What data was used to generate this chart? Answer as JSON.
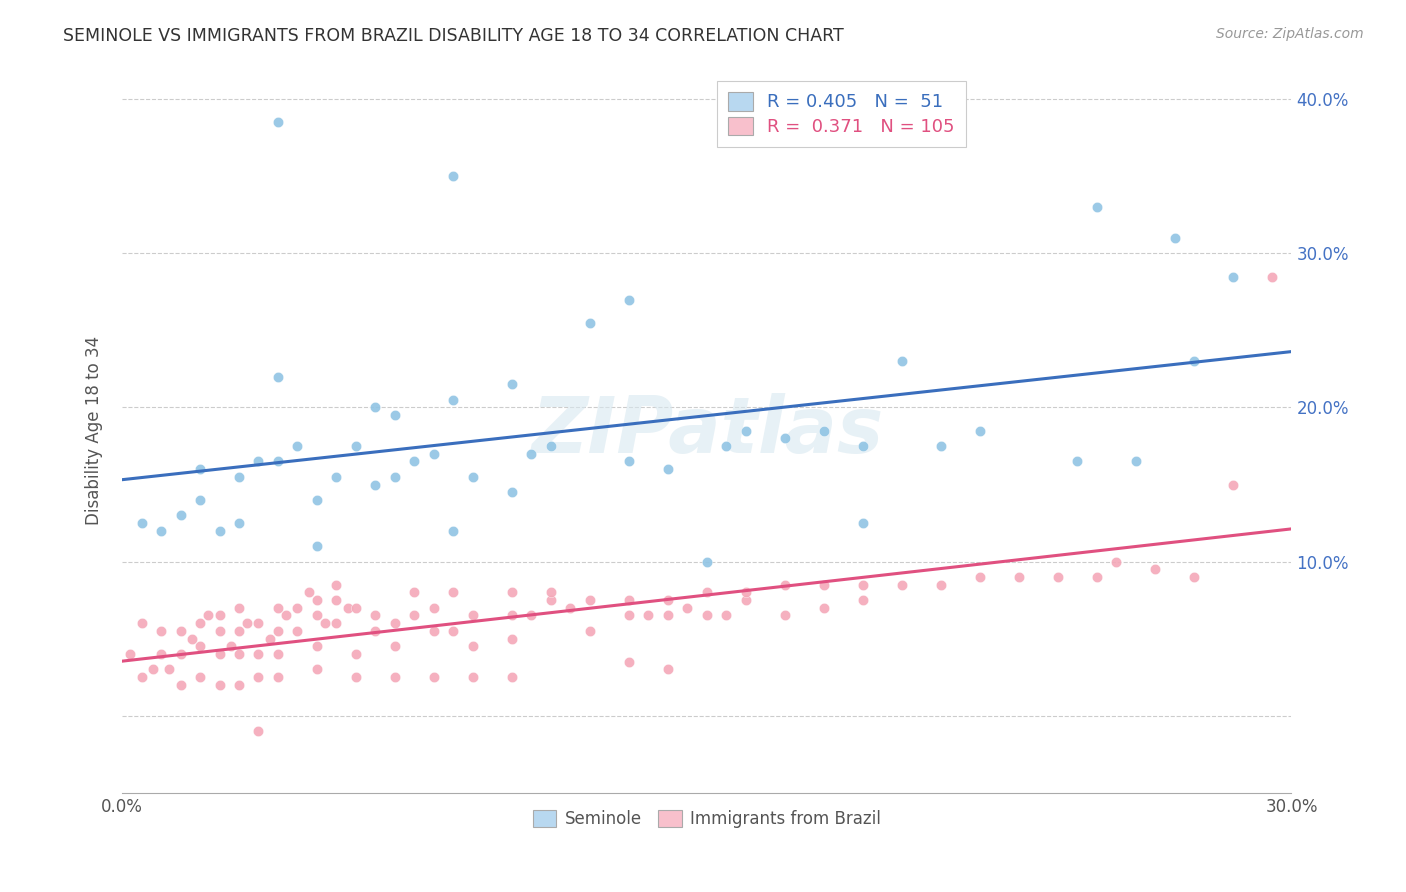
{
  "title": "SEMINOLE VS IMMIGRANTS FROM BRAZIL DISABILITY AGE 18 TO 34 CORRELATION CHART",
  "source": "Source: ZipAtlas.com",
  "ylabel": "Disability Age 18 to 34",
  "xlim": [
    0.0,
    0.3
  ],
  "ylim": [
    -0.05,
    0.42
  ],
  "x_tick_positions": [
    0.0,
    0.05,
    0.1,
    0.15,
    0.2,
    0.25,
    0.3
  ],
  "x_tick_labels": [
    "0.0%",
    "",
    "",
    "",
    "",
    "",
    "30.0%"
  ],
  "y_tick_positions": [
    0.0,
    0.1,
    0.2,
    0.3,
    0.4
  ],
  "y_tick_labels_right": [
    "",
    "10.0%",
    "20.0%",
    "30.0%",
    "40.0%"
  ],
  "blue_scatter_color": "#90c4e4",
  "pink_scatter_color": "#f4a8b8",
  "blue_line_color": "#3a6ebd",
  "pink_line_color": "#e05080",
  "legend_blue_fill": "#b8d8f0",
  "legend_pink_fill": "#f8c0cc",
  "R_blue": 0.405,
  "N_blue": 51,
  "R_pink": 0.371,
  "N_pink": 105,
  "watermark": "ZIPatlas",
  "grid_color": "#cccccc",
  "blue_scatter_x": [
    0.005,
    0.01,
    0.015,
    0.02,
    0.02,
    0.025,
    0.03,
    0.03,
    0.035,
    0.04,
    0.04,
    0.045,
    0.05,
    0.05,
    0.055,
    0.06,
    0.065,
    0.065,
    0.07,
    0.07,
    0.075,
    0.08,
    0.085,
    0.09,
    0.1,
    0.1,
    0.105,
    0.11,
    0.12,
    0.13,
    0.14,
    0.15,
    0.155,
    0.16,
    0.17,
    0.18,
    0.19,
    0.19,
    0.2,
    0.21,
    0.22,
    0.245,
    0.25,
    0.26,
    0.27,
    0.275,
    0.285,
    0.13,
    0.085,
    0.085,
    0.04
  ],
  "blue_scatter_y": [
    0.125,
    0.12,
    0.13,
    0.14,
    0.16,
    0.12,
    0.155,
    0.125,
    0.165,
    0.165,
    0.22,
    0.175,
    0.14,
    0.11,
    0.155,
    0.175,
    0.15,
    0.2,
    0.155,
    0.195,
    0.165,
    0.17,
    0.205,
    0.155,
    0.145,
    0.215,
    0.17,
    0.175,
    0.255,
    0.165,
    0.16,
    0.1,
    0.175,
    0.185,
    0.18,
    0.185,
    0.125,
    0.175,
    0.23,
    0.175,
    0.185,
    0.165,
    0.33,
    0.165,
    0.31,
    0.23,
    0.285,
    0.27,
    0.35,
    0.12,
    0.385
  ],
  "pink_scatter_x": [
    0.002,
    0.005,
    0.005,
    0.008,
    0.01,
    0.01,
    0.012,
    0.015,
    0.015,
    0.015,
    0.018,
    0.02,
    0.02,
    0.02,
    0.022,
    0.025,
    0.025,
    0.025,
    0.025,
    0.028,
    0.03,
    0.03,
    0.03,
    0.03,
    0.032,
    0.035,
    0.035,
    0.035,
    0.035,
    0.038,
    0.04,
    0.04,
    0.04,
    0.04,
    0.042,
    0.045,
    0.045,
    0.048,
    0.05,
    0.05,
    0.05,
    0.05,
    0.052,
    0.055,
    0.055,
    0.055,
    0.058,
    0.06,
    0.06,
    0.06,
    0.065,
    0.065,
    0.07,
    0.07,
    0.07,
    0.075,
    0.075,
    0.08,
    0.08,
    0.08,
    0.085,
    0.085,
    0.09,
    0.09,
    0.09,
    0.1,
    0.1,
    0.1,
    0.1,
    0.105,
    0.11,
    0.11,
    0.115,
    0.12,
    0.12,
    0.13,
    0.13,
    0.13,
    0.135,
    0.14,
    0.14,
    0.14,
    0.145,
    0.15,
    0.15,
    0.155,
    0.16,
    0.16,
    0.17,
    0.17,
    0.18,
    0.18,
    0.19,
    0.19,
    0.2,
    0.21,
    0.22,
    0.23,
    0.24,
    0.25,
    0.255,
    0.265,
    0.275,
    0.285,
    0.295
  ],
  "pink_scatter_y": [
    0.04,
    0.025,
    0.06,
    0.03,
    0.04,
    0.055,
    0.03,
    0.04,
    0.055,
    0.02,
    0.05,
    0.045,
    0.06,
    0.025,
    0.065,
    0.04,
    0.055,
    0.065,
    0.02,
    0.045,
    0.055,
    0.04,
    0.07,
    0.02,
    0.06,
    0.04,
    0.06,
    0.025,
    -0.01,
    0.05,
    0.055,
    0.07,
    0.04,
    0.025,
    0.065,
    0.055,
    0.07,
    0.08,
    0.045,
    0.065,
    0.03,
    0.075,
    0.06,
    0.075,
    0.06,
    0.085,
    0.07,
    0.04,
    0.07,
    0.025,
    0.065,
    0.055,
    0.06,
    0.045,
    0.025,
    0.065,
    0.08,
    0.055,
    0.07,
    0.025,
    0.08,
    0.055,
    0.065,
    0.045,
    0.025,
    0.08,
    0.065,
    0.05,
    0.025,
    0.065,
    0.075,
    0.08,
    0.07,
    0.055,
    0.075,
    0.065,
    0.075,
    0.035,
    0.065,
    0.065,
    0.075,
    0.03,
    0.07,
    0.065,
    0.08,
    0.065,
    0.075,
    0.08,
    0.065,
    0.085,
    0.07,
    0.085,
    0.075,
    0.085,
    0.085,
    0.085,
    0.09,
    0.09,
    0.09,
    0.09,
    0.1,
    0.095,
    0.09,
    0.15,
    0.285
  ]
}
